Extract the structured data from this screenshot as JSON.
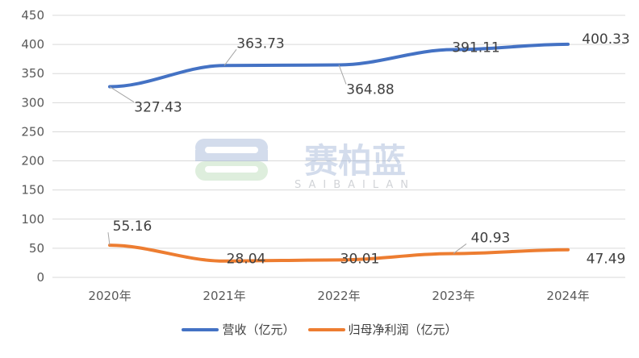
{
  "chart_data": {
    "type": "line",
    "title": "",
    "xlabel": "",
    "ylabel": "",
    "categories": [
      "2020年",
      "2021年",
      "2022年",
      "2023年",
      "2024年"
    ],
    "ylim": [
      0,
      450
    ],
    "yticks": [
      0,
      50,
      100,
      150,
      200,
      250,
      300,
      350,
      400,
      450
    ],
    "grid": true,
    "legend": "bottom",
    "series": [
      {
        "name": "营收（亿元）",
        "color": "#4472C4",
        "values": [
          327.43,
          363.73,
          364.88,
          391.11,
          400.33
        ],
        "labels": [
          "327.43",
          "363.73",
          "364.88",
          "391.11",
          "400.33"
        ]
      },
      {
        "name": "归母净利润（亿元）",
        "color": "#ED7D31",
        "values": [
          55.16,
          28.04,
          30.01,
          40.93,
          47.49
        ],
        "labels": [
          "55.16",
          "28.04",
          "30.01",
          "40.93",
          "47.49"
        ]
      }
    ]
  },
  "watermark": {
    "text": "赛柏蓝",
    "subtext": "SAIBAILAN"
  }
}
